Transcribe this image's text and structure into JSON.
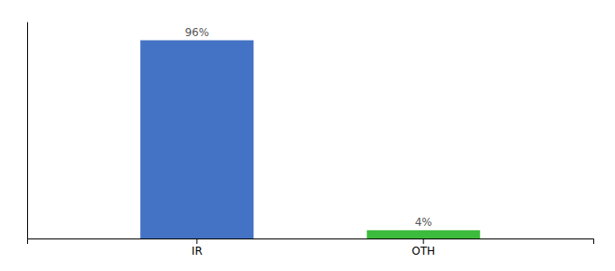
{
  "chart_data": {
    "type": "bar",
    "categories": [
      "IR",
      "OTH"
    ],
    "values": [
      96,
      4
    ],
    "value_labels": [
      "96%",
      "4%"
    ],
    "data_labels": true,
    "colors": [
      "#4472c4",
      "#3dbb3d"
    ],
    "ylim": [
      0,
      105
    ],
    "tick_labels": "x"
  }
}
